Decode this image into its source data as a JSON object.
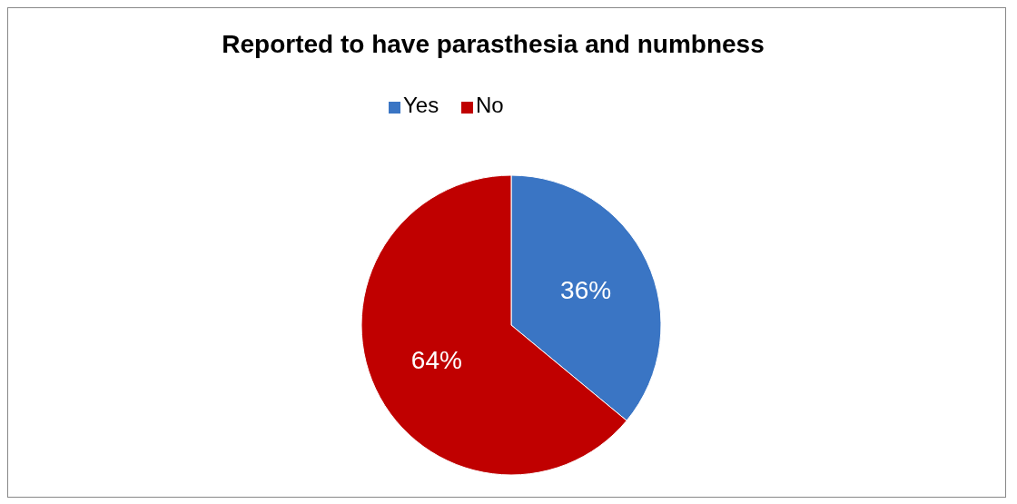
{
  "chart_data": {
    "type": "pie",
    "title": "Reported to have parasthesia and numbness",
    "categories": [
      "Yes",
      "No"
    ],
    "values": [
      36,
      64
    ],
    "colors": [
      "#3a75c4",
      "#c00000"
    ],
    "value_labels": [
      "36%",
      "64%"
    ],
    "legend": "top"
  }
}
